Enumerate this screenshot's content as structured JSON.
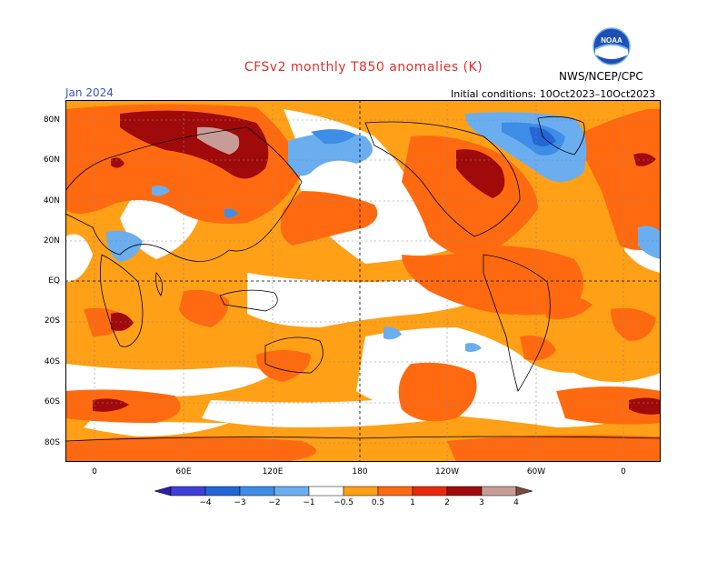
{
  "header": {
    "title": "CFSv2 monthly T850 anomalies (K)",
    "agency": "NWS/NCEP/CPC",
    "month": "Jan 2024",
    "initial_conditions": "Initial conditions: 10Oct2023–10Oct2023",
    "logo_text": "NOAA"
  },
  "colors": {
    "title": "#e0302a",
    "month": "#3a56c8",
    "frame": "#000000",
    "noaa_blue": "#1f4fb4",
    "noaa_light": "#6fb1f0"
  },
  "map": {
    "projection": "equirectangular, centered on 180",
    "lat_labels": [
      "80N",
      "60N",
      "40N",
      "20N",
      "EQ",
      "20S",
      "40S",
      "60S",
      "80S"
    ],
    "lon_labels": [
      "0",
      "60E",
      "120E",
      "180",
      "120W",
      "60W",
      "0"
    ],
    "features": [
      "continent outlines",
      "dashed lat/lon grid",
      "zero-meridian and equator dashed lines"
    ]
  },
  "legend": {
    "ticks": [
      "−4",
      "−3",
      "−2",
      "−1",
      "−0.5",
      "0.5",
      "1",
      "2",
      "3",
      "4"
    ],
    "colors": [
      "#2b1fa8",
      "#4040d8",
      "#2266d8",
      "#3e8de6",
      "#6aaef0",
      "#ffffff",
      "#ffa016",
      "#ff6a10",
      "#e8280a",
      "#a00a0a",
      "#c89c96",
      "#7a4a42"
    ]
  }
}
